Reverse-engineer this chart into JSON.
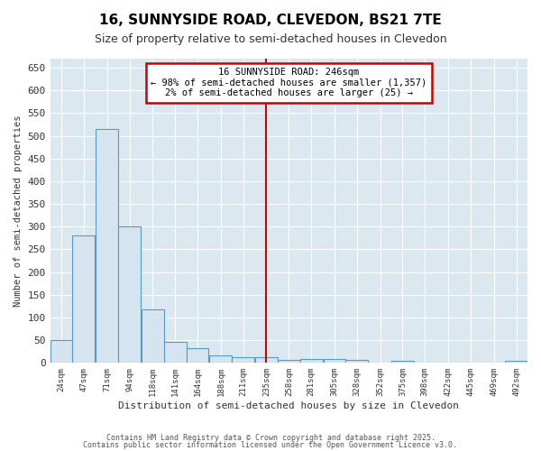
{
  "title": "16, SUNNYSIDE ROAD, CLEVEDON, BS21 7TE",
  "subtitle": "Size of property relative to semi-detached houses in Clevedon",
  "xlabel": "Distribution of semi-detached houses by size in Clevedon",
  "ylabel": "Number of semi-detached properties",
  "bar_color": "#d6e4f0",
  "bar_edge_color": "#5599cc",
  "background_color": "#ffffff",
  "plot_bg_color": "#dce8f0",
  "grid_color": "#ffffff",
  "vline_x": 246,
  "vline_color": "#cc0000",
  "annotation_title": "16 SUNNYSIDE ROAD: 246sqm",
  "annotation_line1": "← 98% of semi-detached houses are smaller (1,357)",
  "annotation_line2": "2% of semi-detached houses are larger (25) →",
  "annotation_box_color": "#ffffff",
  "annotation_box_edge": "#cc0000",
  "bin_edges": [
    24,
    47,
    71,
    94,
    118,
    141,
    164,
    188,
    211,
    235,
    258,
    281,
    305,
    328,
    352,
    375,
    398,
    422,
    445,
    469,
    492,
    515
  ],
  "bin_labels": [
    "24sqm",
    "47sqm",
    "71sqm",
    "94sqm",
    "118sqm",
    "141sqm",
    "164sqm",
    "188sqm",
    "211sqm",
    "235sqm",
    "258sqm",
    "281sqm",
    "305sqm",
    "328sqm",
    "352sqm",
    "375sqm",
    "398sqm",
    "422sqm",
    "445sqm",
    "469sqm",
    "492sqm"
  ],
  "counts": [
    50,
    280,
    515,
    300,
    118,
    47,
    32,
    17,
    13,
    12,
    7,
    8,
    8,
    7,
    0,
    5,
    0,
    0,
    0,
    0,
    5
  ],
  "ylim": [
    0,
    670
  ],
  "yticks": [
    0,
    50,
    100,
    150,
    200,
    250,
    300,
    350,
    400,
    450,
    500,
    550,
    600,
    650
  ],
  "footer1": "Contains HM Land Registry data © Crown copyright and database right 2025.",
  "footer2": "Contains public sector information licensed under the Open Government Licence v3.0."
}
